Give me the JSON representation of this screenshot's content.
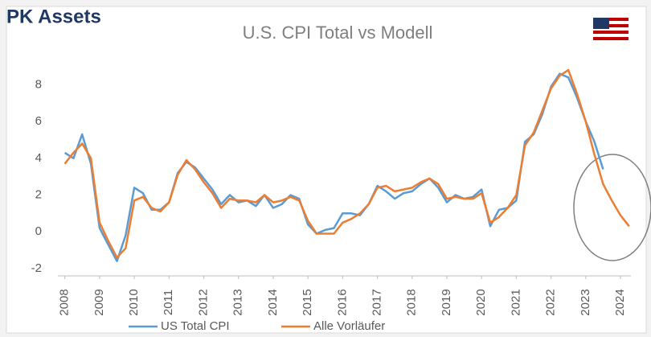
{
  "logo": "PK Assets",
  "chart_data": {
    "type": "line",
    "title": "U.S. CPI  Total  vs  Modell",
    "x": [
      2008,
      2008.25,
      2008.5,
      2008.75,
      2009,
      2009.25,
      2009.5,
      2009.75,
      2010,
      2010.25,
      2010.5,
      2010.75,
      2011,
      2011.25,
      2011.5,
      2011.75,
      2012,
      2012.25,
      2012.5,
      2012.75,
      2013,
      2013.25,
      2013.5,
      2013.75,
      2014,
      2014.25,
      2014.5,
      2014.75,
      2015,
      2015.25,
      2015.5,
      2015.75,
      2016,
      2016.25,
      2016.5,
      2016.75,
      2017,
      2017.25,
      2017.5,
      2017.75,
      2018,
      2018.25,
      2018.5,
      2018.75,
      2019,
      2019.25,
      2019.5,
      2019.75,
      2020,
      2020.25,
      2020.5,
      2020.75,
      2021,
      2021.25,
      2021.5,
      2021.75,
      2022,
      2022.25,
      2022.5,
      2022.75,
      2023,
      2023.25,
      2023.5,
      2023.75,
      2024,
      2024.25
    ],
    "series": [
      {
        "name": "US Total  CPI",
        "color": "#5b9bd5",
        "values": [
          4.3,
          4.0,
          5.3,
          3.7,
          0.2,
          -0.7,
          -1.6,
          -0.2,
          2.4,
          2.1,
          1.2,
          1.2,
          1.6,
          3.2,
          3.8,
          3.5,
          2.9,
          2.3,
          1.5,
          2.0,
          1.6,
          1.7,
          1.4,
          2.0,
          1.3,
          1.5,
          2.0,
          1.8,
          0.4,
          -0.1,
          0.1,
          0.2,
          1.0,
          1.0,
          0.9,
          1.5,
          2.5,
          2.2,
          1.8,
          2.1,
          2.2,
          2.6,
          2.9,
          2.4,
          1.6,
          2.0,
          1.8,
          1.9,
          2.3,
          0.3,
          1.2,
          1.3,
          1.7,
          4.9,
          5.3,
          6.4,
          7.9,
          8.6,
          8.4,
          7.3,
          6.0,
          4.9,
          3.4,
          null,
          null,
          null
        ]
      },
      {
        "name": "Alle Vorläufer",
        "color": "#ed7d31",
        "values": [
          3.7,
          4.3,
          4.8,
          4.0,
          0.5,
          -0.5,
          -1.4,
          -0.9,
          1.7,
          1.9,
          1.3,
          1.1,
          1.6,
          3.1,
          3.9,
          3.4,
          2.7,
          2.1,
          1.3,
          1.8,
          1.7,
          1.7,
          1.6,
          2.0,
          1.6,
          1.7,
          1.9,
          1.7,
          0.6,
          -0.1,
          -0.1,
          -0.1,
          0.5,
          0.7,
          1.0,
          1.5,
          2.4,
          2.5,
          2.2,
          2.3,
          2.4,
          2.7,
          2.9,
          2.6,
          1.8,
          1.9,
          1.8,
          1.8,
          2.1,
          0.5,
          0.8,
          1.3,
          2.0,
          4.7,
          5.4,
          6.6,
          7.8,
          8.5,
          8.8,
          7.5,
          6.0,
          4.2,
          2.6,
          1.7,
          0.9,
          0.3
        ]
      }
    ],
    "xlim": [
      2007.8,
      2024.3
    ],
    "xticks": [
      2008,
      2009,
      2010,
      2011,
      2012,
      2013,
      2014,
      2015,
      2016,
      2017,
      2018,
      2019,
      2020,
      2021,
      2022,
      2023,
      2024
    ],
    "ylim": [
      -2.4,
      9.2
    ],
    "yticks": [
      -2,
      0,
      2,
      4,
      6,
      8
    ],
    "grid": false,
    "legend": "bottom"
  }
}
